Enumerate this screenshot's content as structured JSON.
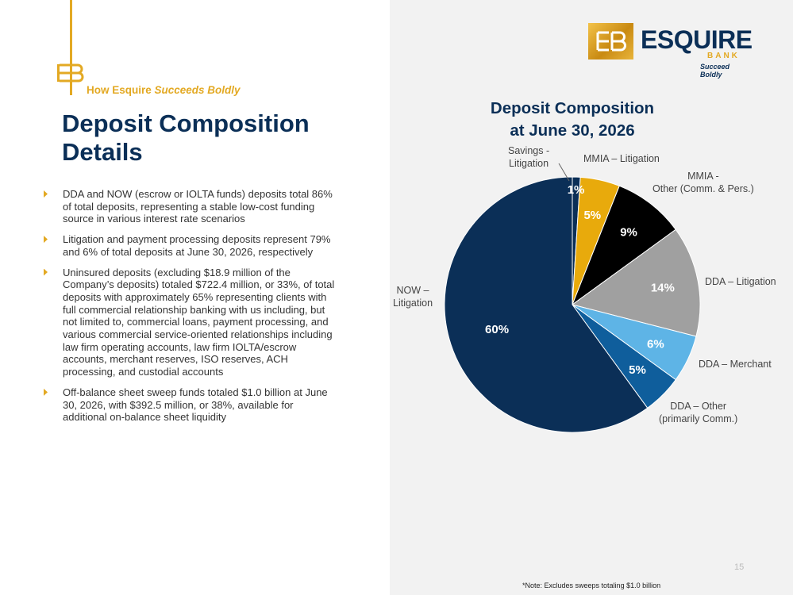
{
  "header": {
    "tagline_prefix": "How Esquire ",
    "tagline_emphasis": "Succeeds Boldly",
    "title_line1": "Deposit Composition",
    "title_line2": "Details"
  },
  "bullets": [
    "DDA and NOW (escrow or IOLTA funds) deposits total 86% of total deposits, representing a stable low-cost funding source in various interest rate scenarios",
    "Litigation and payment processing deposits represent 79% and 6% of total deposits at June 30, 2026, respectively",
    "Uninsured deposits (excluding $18.9 million of the Company’s deposits) totaled $722.4 million, or 33%, of total deposits with approximately 65% representing clients with full commercial relationship banking with us including, but not limited to, commercial loans, payment processing, and various commercial service-oriented relationships including law firm operating accounts, law firm IOLTA/escrow accounts, merchant reserves, ISO reserves, ACH processing, and custodial accounts",
    "Off-balance sheet sweep funds totaled $1.0 billion at June 30, 2026, with $392.5 million, or 38%, available for additional on-balance sheet liquidity"
  ],
  "logo": {
    "name": "ESQUIRE",
    "sub": "BANK",
    "tagline": "Succeed Boldly"
  },
  "chart_data": {
    "type": "pie",
    "title_line1": "Deposit Composition",
    "title_line2": "at June 30, 2026",
    "slices": [
      {
        "name": "Savings - Litigation",
        "value": 1,
        "label": "1%",
        "color": "#0b2f57"
      },
      {
        "name": "MMIA – Litigation",
        "value": 5,
        "label": "5%",
        "color": "#e8aa0c"
      },
      {
        "name": "MMIA - Other (Comm. & Pers.)",
        "value": 9,
        "label": "9%",
        "color": "#000000"
      },
      {
        "name": "DDA – Litigation",
        "value": 14,
        "label": "14%",
        "color": "#a0a0a0"
      },
      {
        "name": "DDA – Merchant",
        "value": 6,
        "label": "6%",
        "color": "#5eb4e6"
      },
      {
        "name": "DDA – Other (primarily Comm.)",
        "value": 5,
        "label": "5%",
        "color": "#0f5e9c"
      },
      {
        "name": "NOW – Litigation",
        "value": 60,
        "label": "60%",
        "color": "#0b2f57"
      }
    ],
    "category_labels": {
      "savings_line1": "Savings -",
      "savings_line2": "Litigation",
      "mmia_lit": "MMIA – Litigation",
      "mmia_other_line1": "MMIA -",
      "mmia_other_line2": "Other (Comm. & Pers.)",
      "dda_lit": "DDA – Litigation",
      "dda_merchant": "DDA – Merchant",
      "dda_other_line1": "DDA – Other",
      "dda_other_line2": "(primarily Comm.)",
      "now_line1": "NOW –",
      "now_line2": "Litigation"
    }
  },
  "footer": {
    "page_number": "15",
    "note": "*Note: Excludes sweeps totaling $1.0 billion"
  }
}
